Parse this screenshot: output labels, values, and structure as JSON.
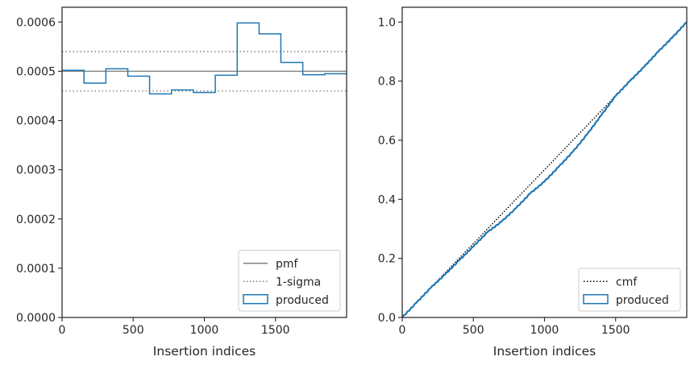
{
  "chart_data": [
    {
      "type": "step",
      "xlabel": "Insertion indices",
      "ylabel": "",
      "title": "",
      "xlim": [
        0,
        2000
      ],
      "ylim": [
        0,
        0.00063
      ],
      "xticks": [
        0,
        500,
        1000,
        1500
      ],
      "xtick_labels": [
        "0",
        "500",
        "1000",
        "1500"
      ],
      "yticks": [
        0,
        0.0001,
        0.0002,
        0.0003,
        0.0004,
        0.0005,
        0.0006
      ],
      "ytick_labels": [
        "0.0000",
        "0.0001",
        "0.0002",
        "0.0003",
        "0.0004",
        "0.0005",
        "0.0006"
      ],
      "legend_position": "lower-right",
      "series": [
        {
          "name": "pmf",
          "kind": "hline",
          "y": 0.0005,
          "color": "#808080",
          "style": "solid"
        },
        {
          "name": "1-sigma",
          "kind": "hlines",
          "y": [
            0.00046,
            0.00054
          ],
          "color": "#808080",
          "style": "dotted"
        },
        {
          "name": "produced",
          "kind": "step-histogram",
          "color": "#1f77b4",
          "bin_edges": [
            0,
            154,
            308,
            462,
            615,
            769,
            923,
            1077,
            1231,
            1385,
            1538,
            1692,
            1846,
            2000
          ],
          "values": [
            0.000502,
            0.000476,
            0.000505,
            0.00049,
            0.000454,
            0.000462,
            0.000457,
            0.000492,
            0.000598,
            0.000576,
            0.000518,
            0.000493,
            0.000495
          ]
        }
      ]
    },
    {
      "type": "line",
      "xlabel": "Insertion indices",
      "ylabel": "",
      "title": "",
      "xlim": [
        0,
        2000
      ],
      "ylim": [
        0,
        1.05
      ],
      "xticks": [
        0,
        500,
        1000,
        1500
      ],
      "xtick_labels": [
        "0",
        "500",
        "1000",
        "1500"
      ],
      "yticks": [
        0,
        0.2,
        0.4,
        0.6,
        0.8,
        1.0
      ],
      "ytick_labels": [
        "0.0",
        "0.2",
        "0.4",
        "0.6",
        "0.8",
        "1.0"
      ],
      "legend_position": "lower-right",
      "series": [
        {
          "name": "cmf",
          "color": "#000000",
          "style": "dotted",
          "x": [
            0,
            2000
          ],
          "y": [
            0,
            1.0
          ]
        },
        {
          "name": "produced",
          "color": "#1f77b4",
          "style": "step-cumulative",
          "x": [
            0,
            100,
            200,
            300,
            400,
            500,
            600,
            700,
            800,
            900,
            1000,
            1100,
            1200,
            1300,
            1400,
            1500,
            1600,
            1700,
            1800,
            1900,
            2000
          ],
          "y": [
            0,
            0.05,
            0.1,
            0.145,
            0.193,
            0.24,
            0.289,
            0.325,
            0.37,
            0.42,
            0.46,
            0.51,
            0.561,
            0.62,
            0.685,
            0.75,
            0.8,
            0.848,
            0.9,
            0.948,
            1.0
          ]
        }
      ]
    }
  ]
}
